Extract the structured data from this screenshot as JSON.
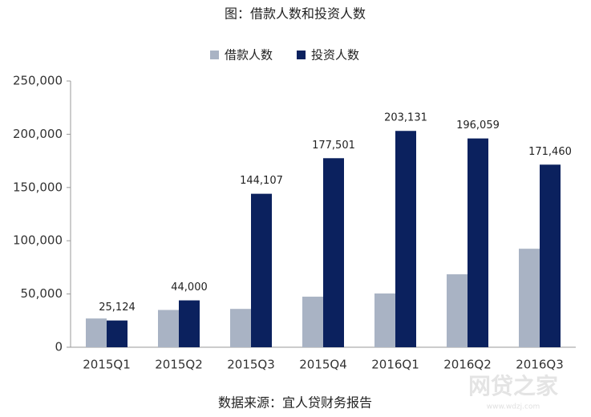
{
  "chart_data": {
    "type": "bar",
    "title": "图：借款人数和投资人数",
    "categories": [
      "2015Q1",
      "2015Q2",
      "2015Q3",
      "2015Q4",
      "2016Q1",
      "2016Q2",
      "2016Q3"
    ],
    "series": [
      {
        "name": "借款人数",
        "color": "#a9b3c4",
        "values": [
          27000,
          35000,
          36000,
          47500,
          50500,
          68500,
          92500
        ]
      },
      {
        "name": "投资人数",
        "color": "#0b215e",
        "values": [
          25124,
          44000,
          144107,
          177501,
          203131,
          196059,
          171460
        ],
        "value_labels": [
          "25,124",
          "44,000",
          "144,107",
          "177,501",
          "203,131",
          "196,059",
          "171,460"
        ]
      }
    ],
    "ylim": [
      0,
      250000
    ],
    "yticks": [
      0,
      {
        "value": 50000,
        "label": "50,000"
      },
      {
        "value": 100000,
        "label": "100,000"
      },
      {
        "value": 150000,
        "label": "150,000"
      },
      {
        "value": 200000,
        "label": "200,000"
      },
      {
        "value": 250000,
        "label": "250,000"
      }
    ],
    "legend": "top",
    "source": "数据来源：宜人贷财务报告",
    "watermark": "网贷之家",
    "watermark_url": "www.wdzj.com"
  }
}
